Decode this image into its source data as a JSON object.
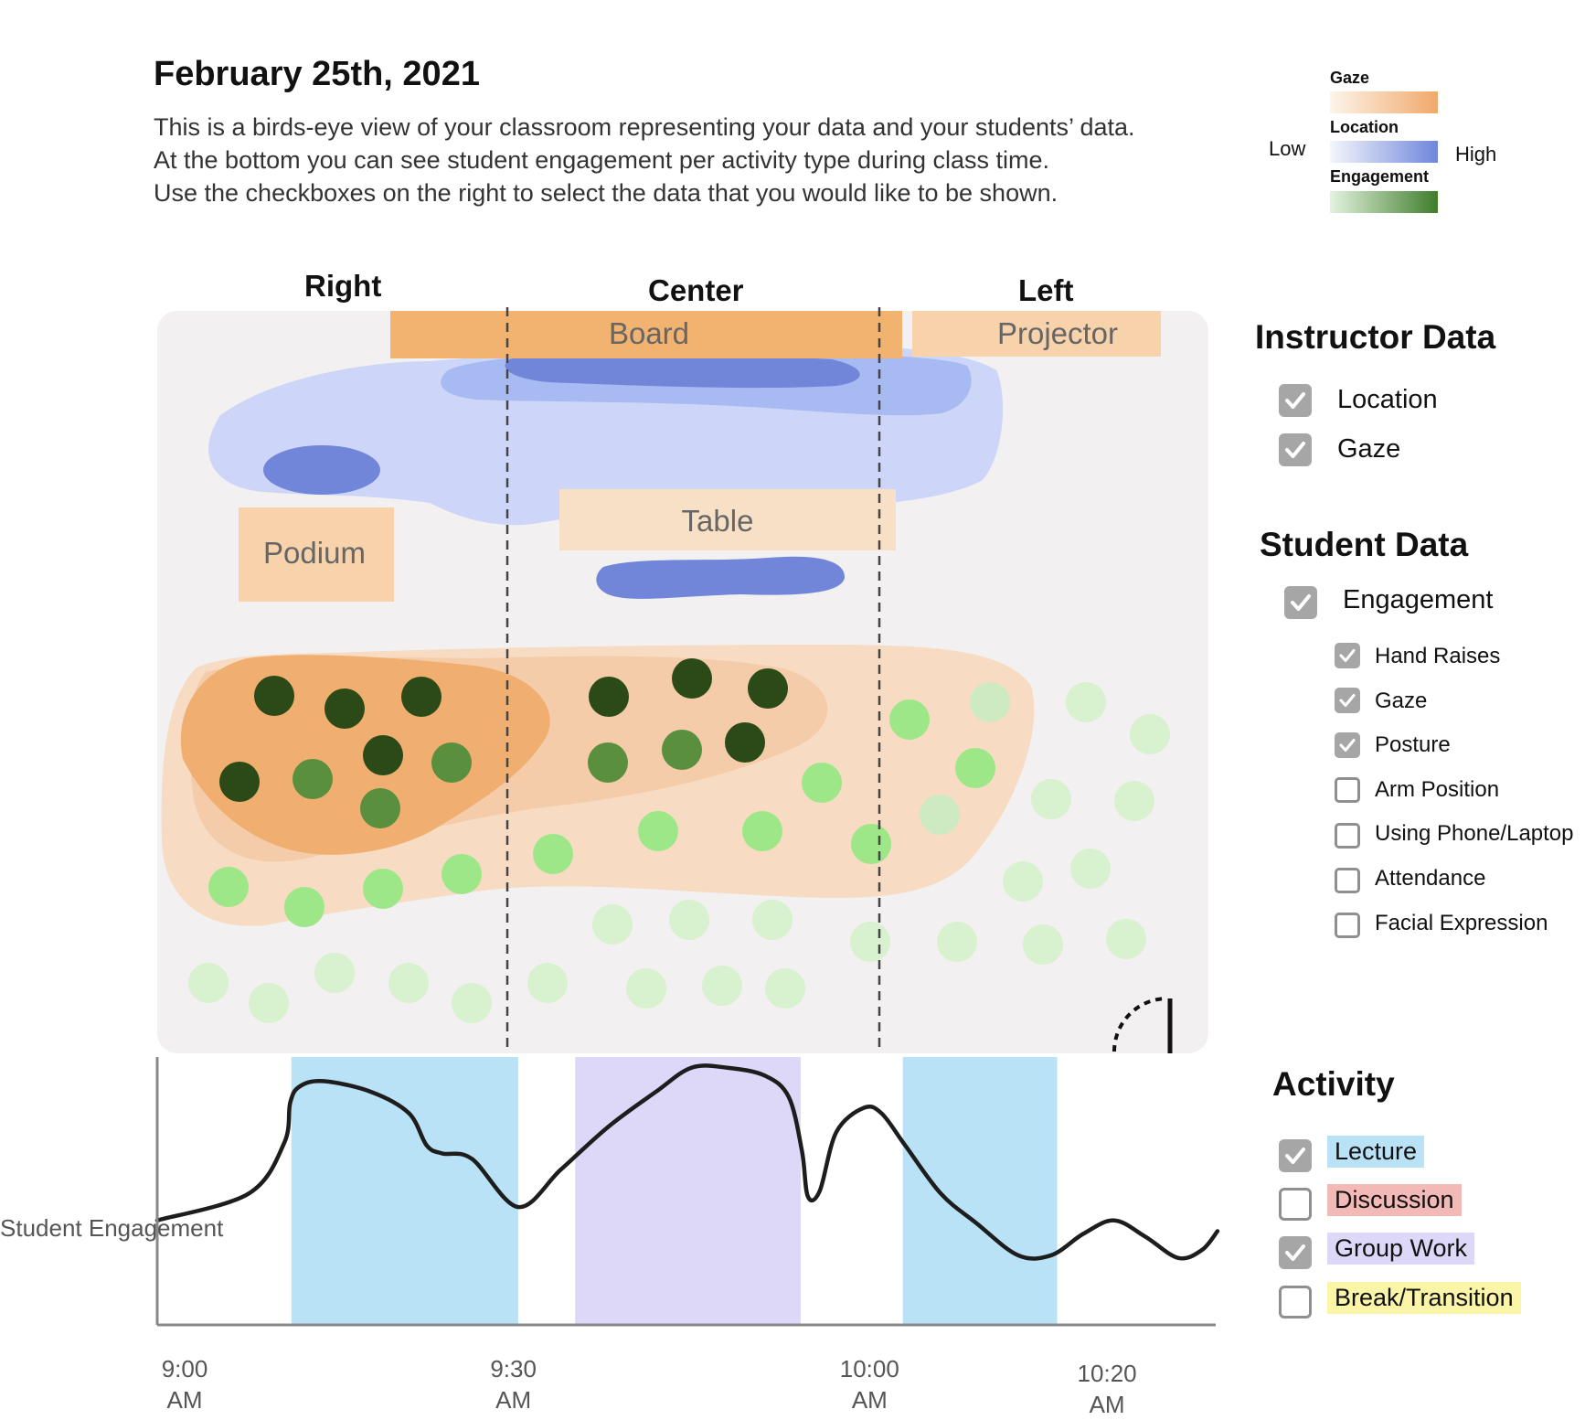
{
  "header": {
    "date": "February 25th, 2021",
    "description": [
      "This is a birds-eye view of your classroom representing your data and your students’ data.",
      "At the bottom you can see student engagement per activity type during class time.",
      "Use the checkboxes on the right to select the data that you would like to be shown."
    ]
  },
  "legend": {
    "low": "Low",
    "high": "High",
    "scales": [
      {
        "name": "Gaze",
        "from": "#fdf4ea",
        "to": "#f0a96a"
      },
      {
        "name": "Location",
        "from": "#f4f6fc",
        "to": "#6f86db"
      },
      {
        "name": "Engagement",
        "from": "#e4f3df",
        "to": "#3f7d2b"
      }
    ]
  },
  "classroom": {
    "regions": [
      "Right",
      "Center",
      "Left"
    ],
    "board": "Board",
    "projector": "Projector",
    "table": "Table",
    "podium": "Podium"
  },
  "instructor_panel": {
    "title": "Instructor Data",
    "options": [
      {
        "label": "Location",
        "checked": true
      },
      {
        "label": "Gaze",
        "checked": true
      }
    ]
  },
  "student_panel": {
    "title": "Student Data",
    "engagement": {
      "label": "Engagement",
      "checked": true
    },
    "sub_options": [
      {
        "label": "Hand Raises",
        "checked": true
      },
      {
        "label": "Gaze",
        "checked": true
      },
      {
        "label": "Posture",
        "checked": true
      },
      {
        "label": "Arm Position",
        "checked": false
      },
      {
        "label": "Using Phone/Laptop",
        "checked": false
      },
      {
        "label": "Attendance",
        "checked": false
      },
      {
        "label": "Facial Expression",
        "checked": false
      }
    ]
  },
  "activity_panel": {
    "title": "Activity",
    "options": [
      {
        "label": "Lecture",
        "checked": true,
        "color": "#b9e2f6"
      },
      {
        "label": "Discussion",
        "checked": false,
        "color": "#f3b9b6"
      },
      {
        "label": "Group Work",
        "checked": true,
        "color": "#ddd8f8"
      },
      {
        "label": "Break/Transition",
        "checked": false,
        "color": "#fbf5a8"
      }
    ]
  },
  "chart_data": {
    "type": "line",
    "ylabel": "Student Engagement",
    "x_ticks": [
      {
        "t": 0,
        "label": "9:00\nAM"
      },
      {
        "t": 30,
        "label": "9:30\nAM"
      },
      {
        "t": 60,
        "label": "10:00\nAM"
      },
      {
        "t": 80,
        "label": "10:20\nAM"
      }
    ],
    "xlim": [
      0,
      89
    ],
    "ylim": [
      0,
      1
    ],
    "activity_bands": [
      {
        "activity": "Lecture",
        "start": 11.3,
        "end": 30.4
      },
      {
        "activity": "Group Work",
        "start": 35.2,
        "end": 54.2
      },
      {
        "activity": "Lecture",
        "start": 62.8,
        "end": 75.8
      }
    ],
    "series": [
      {
        "points": [
          [
            0,
            0.39
          ],
          [
            7.7,
            0.49
          ],
          [
            10.7,
            0.68
          ],
          [
            11.2,
            0.83
          ],
          [
            12,
            0.89
          ],
          [
            14,
            0.91
          ],
          [
            18,
            0.87
          ],
          [
            21.2,
            0.79
          ],
          [
            22.7,
            0.67
          ],
          [
            24,
            0.64
          ],
          [
            26.5,
            0.62
          ],
          [
            30.4,
            0.44
          ],
          [
            34,
            0.58
          ],
          [
            38,
            0.74
          ],
          [
            42,
            0.87
          ],
          [
            45,
            0.96
          ],
          [
            48,
            0.96
          ],
          [
            51.2,
            0.93
          ],
          [
            53.2,
            0.85
          ],
          [
            54.3,
            0.65
          ],
          [
            54.8,
            0.48
          ],
          [
            55.8,
            0.5
          ],
          [
            57.2,
            0.72
          ],
          [
            59.5,
            0.81
          ],
          [
            61,
            0.79
          ],
          [
            63,
            0.67
          ],
          [
            66,
            0.49
          ],
          [
            69,
            0.38
          ],
          [
            72.5,
            0.26
          ],
          [
            75.3,
            0.26
          ],
          [
            78,
            0.34
          ],
          [
            80.6,
            0.39
          ],
          [
            83.2,
            0.33
          ],
          [
            86,
            0.25
          ],
          [
            88,
            0.28
          ],
          [
            89.3,
            0.35
          ]
        ]
      }
    ]
  }
}
